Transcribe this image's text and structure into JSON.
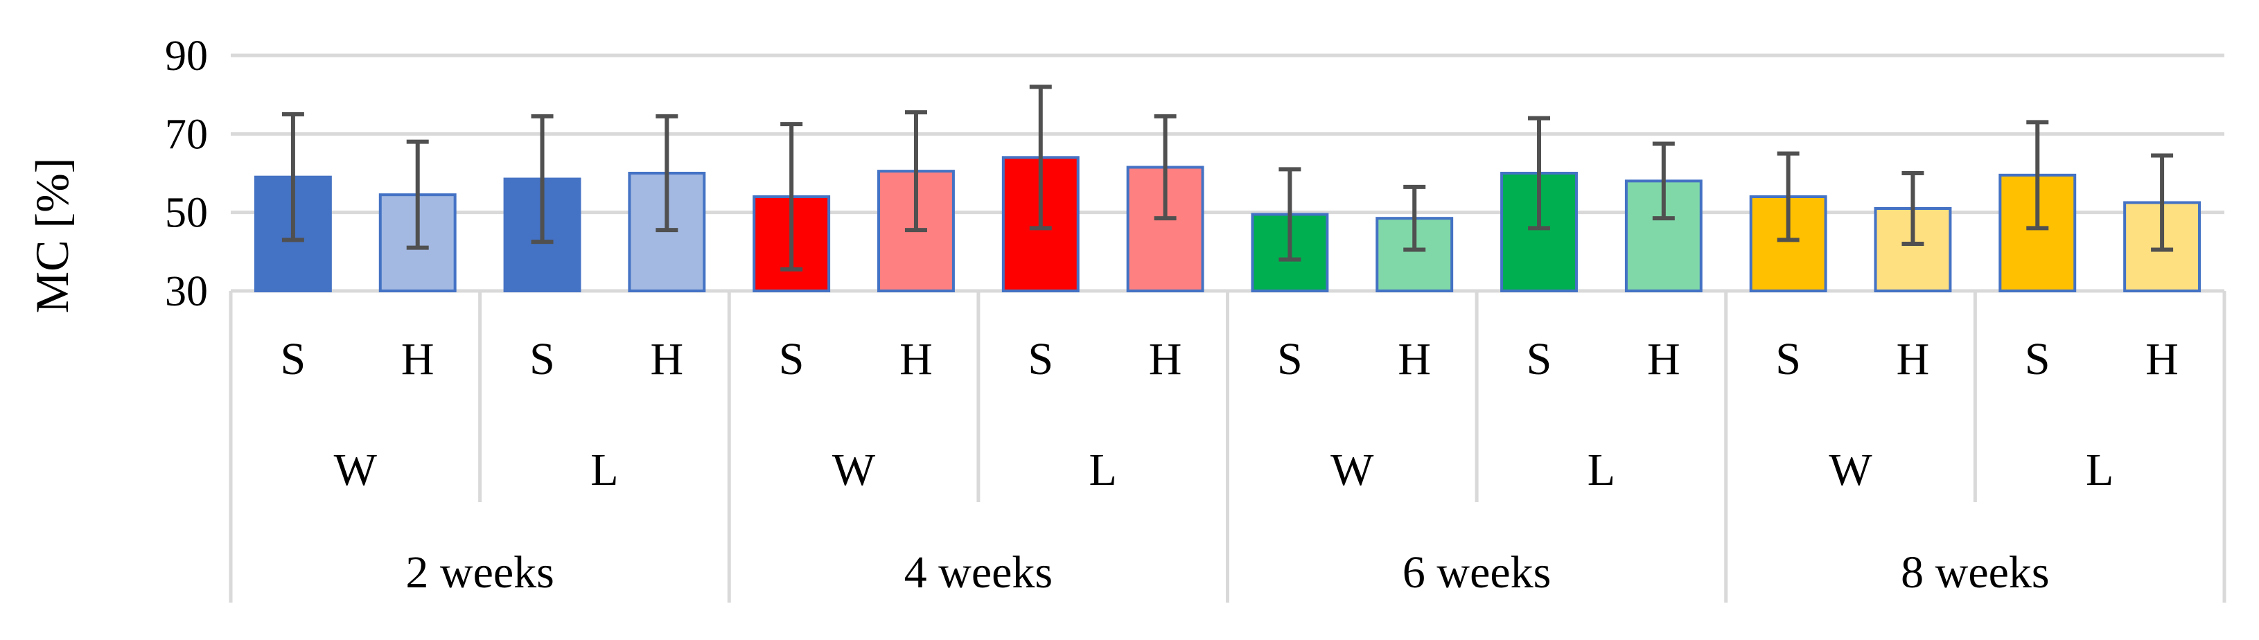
{
  "chart_data": {
    "type": "bar",
    "ylabel": "MC [%]",
    "ylim": [
      30,
      90
    ],
    "yticks": [
      30,
      50,
      70,
      90
    ],
    "grid": true,
    "legend": "none",
    "categories": [
      {
        "period": "2 weeks",
        "group": "W",
        "type": "S",
        "value": 59,
        "error": 16,
        "color": "#4472c4"
      },
      {
        "period": "2 weeks",
        "group": "W",
        "type": "H",
        "value": 54.5,
        "error": 13.5,
        "color": "#a3b9e2"
      },
      {
        "period": "2 weeks",
        "group": "L",
        "type": "S",
        "value": 58.5,
        "error": 16,
        "color": "#4472c4"
      },
      {
        "period": "2 weeks",
        "group": "L",
        "type": "H",
        "value": 60,
        "error": 14.5,
        "color": "#a3b9e2"
      },
      {
        "period": "4 weeks",
        "group": "W",
        "type": "S",
        "value": 54,
        "error": 18.5,
        "color": "#ff0000"
      },
      {
        "period": "4 weeks",
        "group": "W",
        "type": "H",
        "value": 60.5,
        "error": 15,
        "color": "#ff8080"
      },
      {
        "period": "4 weeks",
        "group": "L",
        "type": "S",
        "value": 64,
        "error": 18,
        "color": "#ff0000"
      },
      {
        "period": "4 weeks",
        "group": "L",
        "type": "H",
        "value": 61.5,
        "error": 13,
        "color": "#ff8080"
      },
      {
        "period": "6 weeks",
        "group": "W",
        "type": "S",
        "value": 49.5,
        "error": 11.5,
        "color": "#00b050"
      },
      {
        "period": "6 weeks",
        "group": "W",
        "type": "H",
        "value": 48.5,
        "error": 8,
        "color": "#80d8a8"
      },
      {
        "period": "6 weeks",
        "group": "L",
        "type": "S",
        "value": 60,
        "error": 14,
        "color": "#00b050"
      },
      {
        "period": "6 weeks",
        "group": "L",
        "type": "H",
        "value": 58,
        "error": 9.5,
        "color": "#80d8a8"
      },
      {
        "period": "8 weeks",
        "group": "W",
        "type": "S",
        "value": 54,
        "error": 11,
        "color": "#ffc000"
      },
      {
        "period": "8 weeks",
        "group": "W",
        "type": "H",
        "value": 51,
        "error": 9,
        "color": "#ffe080"
      },
      {
        "period": "8 weeks",
        "group": "L",
        "type": "S",
        "value": 59.5,
        "error": 13.5,
        "color": "#ffc000"
      },
      {
        "period": "8 weeks",
        "group": "L",
        "type": "H",
        "value": 52.5,
        "error": 12,
        "color": "#ffe080"
      }
    ],
    "group_labels": [
      "W",
      "L",
      "W",
      "L",
      "W",
      "L",
      "W",
      "L"
    ],
    "period_labels": [
      "2 weeks",
      "4 weeks",
      "6 weeks",
      "8 weeks"
    ],
    "colors": {
      "grid": "#d9d9d9",
      "bar_border": "#4472c4",
      "error_bar": "#505050"
    }
  }
}
